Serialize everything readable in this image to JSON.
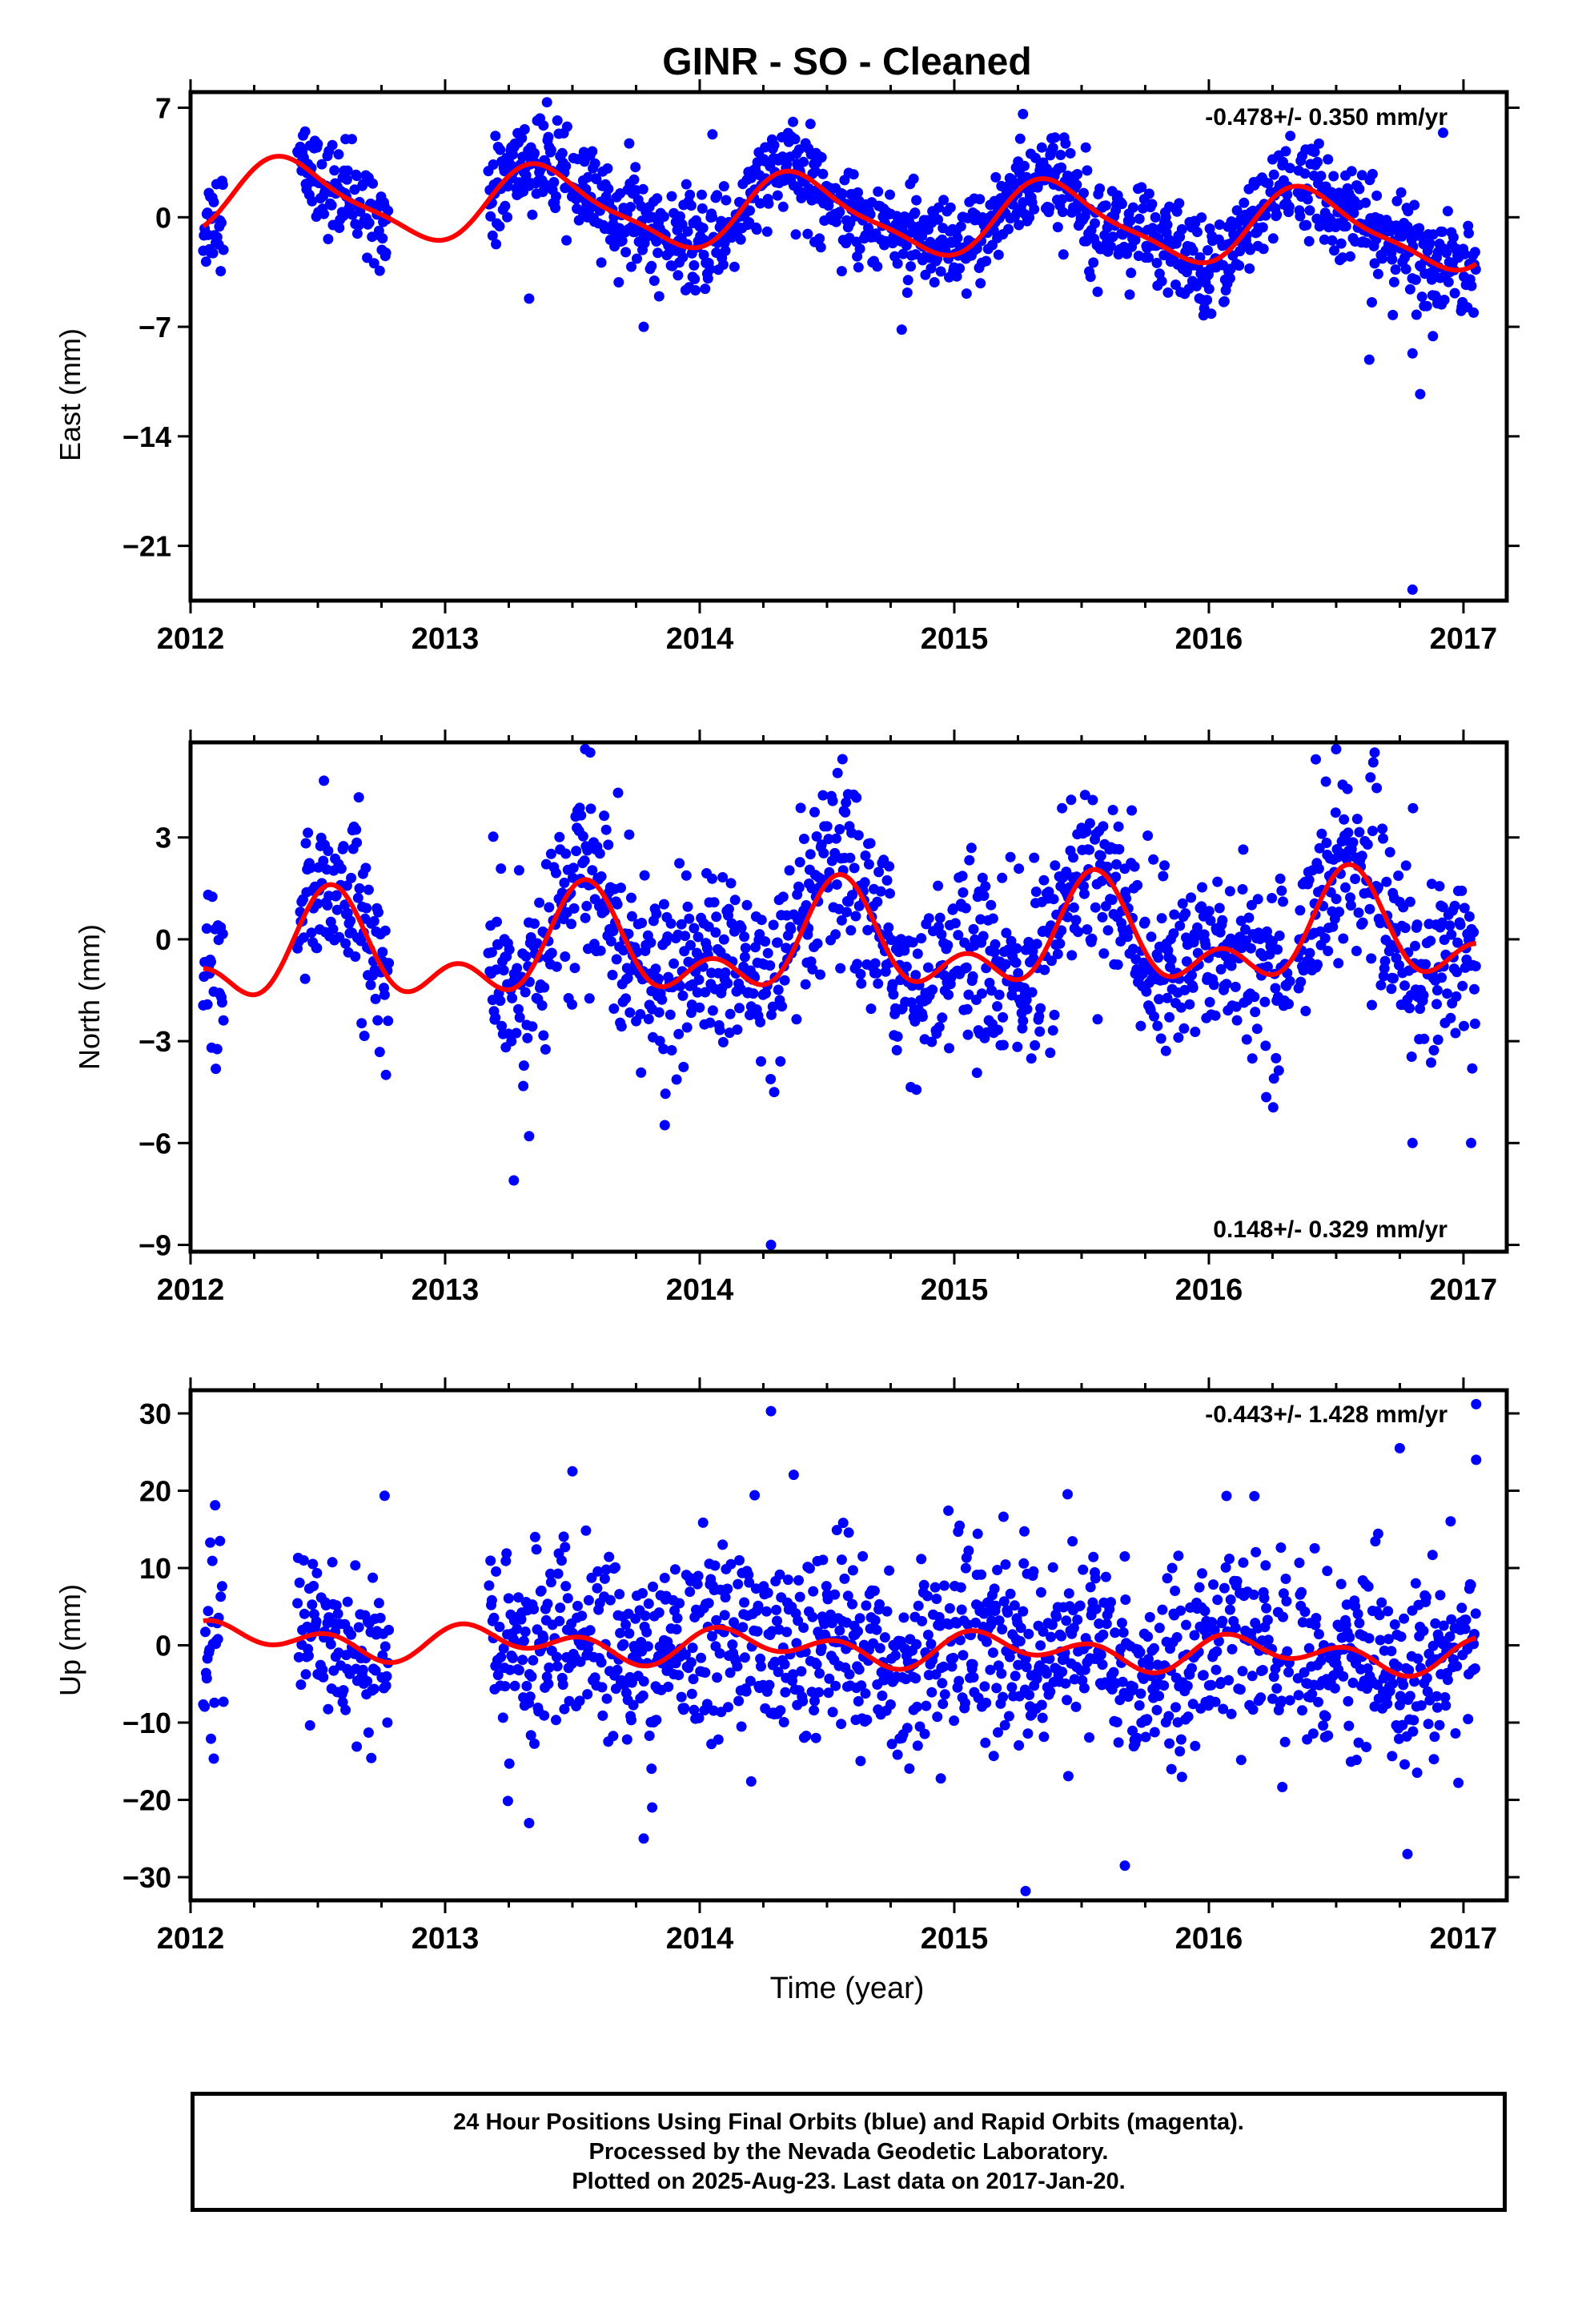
{
  "figure": {
    "title": "GINR  - SO - Cleaned",
    "xlabel": "Time (year)",
    "caption": [
      "24 Hour Positions Using Final Orbits (blue) and Rapid Orbits (magenta).",
      "Processed by the Nevada Geodetic Laboratory.",
      "Plotted on 2025-Aug-23. Last data on 2017-Jan-20."
    ],
    "colors": {
      "points": "#0000ff",
      "fit": "#ff0000",
      "frame": "#000000"
    }
  },
  "chart_data": [
    {
      "type": "scatter",
      "name": "east",
      "ylabel": "East (mm)",
      "rate_label": "-0.478+/- 0.350 mm/yr",
      "rate_position": "top-right",
      "xlim": [
        2012.0,
        2017.17
      ],
      "ylim": [
        -24.5,
        8.0
      ],
      "xticks": [
        2012,
        2013,
        2014,
        2015,
        2016,
        2017
      ],
      "xtick_labels": [
        "2012",
        "2013",
        "2014",
        "2015",
        "2016",
        "2017"
      ],
      "yticks": [
        7,
        0,
        -7,
        -14,
        -21
      ],
      "ytick_labels": [
        "7",
        "0",
        "−7",
        "−14",
        "−21"
      ],
      "segments": [
        [
          2012.05,
          2012.13
        ],
        [
          2012.42,
          2012.78
        ],
        [
          2013.17,
          2016.32
        ],
        [
          2016.35,
          2017.05
        ]
      ],
      "fit": {
        "offset": 0.2,
        "trend": -0.478,
        "annual_amp": 2.3,
        "annual_phase": 2012.4,
        "semi_amp": 0.6,
        "semi_phase": 2012.3
      },
      "noise_sd": 1.5,
      "outliers": [
        [
          2013.33,
          -5.2
        ],
        [
          2013.78,
          -7.0
        ],
        [
          2014.05,
          5.3
        ],
        [
          2015.27,
          6.6
        ],
        [
          2016.32,
          5.2
        ],
        [
          2016.63,
          -9.1
        ],
        [
          2016.8,
          -8.7
        ],
        [
          2016.83,
          -11.3
        ],
        [
          2016.92,
          5.4
        ],
        [
          2016.8,
          -23.8
        ],
        [
          2016.88,
          -7.6
        ]
      ]
    },
    {
      "type": "scatter",
      "name": "north",
      "ylabel": "North (mm)",
      "rate_label": "0.148+/- 0.329 mm/yr",
      "rate_position": "bottom-right",
      "xlim": [
        2012.0,
        2017.17
      ],
      "ylim": [
        -9.2,
        5.8
      ],
      "xticks": [
        2012,
        2013,
        2014,
        2015,
        2016,
        2017
      ],
      "xtick_labels": [
        "2012",
        "2013",
        "2014",
        "2015",
        "2016",
        "2017"
      ],
      "yticks": [
        3,
        0,
        -3,
        -6,
        -9
      ],
      "ytick_labels": [
        "3",
        "0",
        "−3",
        "−6",
        "−9"
      ],
      "segments": [
        [
          2012.05,
          2012.13
        ],
        [
          2012.42,
          2012.78
        ],
        [
          2013.17,
          2016.32
        ],
        [
          2016.35,
          2017.05
        ]
      ],
      "fit": {
        "offset": -0.2,
        "trend": 0.148,
        "annual_amp": 1.2,
        "annual_phase": 2012.55,
        "semi_amp": 0.9,
        "semi_phase": 2012.05
      },
      "noise_sd": 1.3,
      "outliers": [
        [
          2013.27,
          -7.1
        ],
        [
          2014.28,
          -9.0
        ],
        [
          2013.55,
          5.6
        ],
        [
          2016.42,
          5.3
        ],
        [
          2016.5,
          5.6
        ],
        [
          2016.8,
          -6.0
        ],
        [
          2017.03,
          -6.0
        ],
        [
          2013.33,
          -5.8
        ]
      ]
    },
    {
      "type": "scatter",
      "name": "up",
      "ylabel": "Up (mm)",
      "rate_label": "-0.443+/- 1.428 mm/yr",
      "rate_position": "top-right",
      "xlim": [
        2012.0,
        2017.17
      ],
      "ylim": [
        -33.0,
        33.0
      ],
      "xticks": [
        2012,
        2013,
        2014,
        2015,
        2016,
        2017
      ],
      "xtick_labels": [
        "2012",
        "2013",
        "2014",
        "2015",
        "2016",
        "2017"
      ],
      "yticks": [
        30,
        20,
        10,
        0,
        -10,
        -20,
        -30
      ],
      "ytick_labels": [
        "30",
        "20",
        "10",
        "0",
        "−10",
        "−20",
        "−30"
      ],
      "segments": [
        [
          2012.05,
          2012.13
        ],
        [
          2012.42,
          2012.78
        ],
        [
          2013.17,
          2016.32
        ],
        [
          2016.35,
          2017.05
        ]
      ],
      "fit": {
        "offset": -0.3,
        "trend": -0.443,
        "annual_amp": 1.3,
        "annual_phase": 2012.2,
        "semi_amp": 1.6,
        "semi_phase": 2012.05
      },
      "noise_sd": 6.0,
      "outliers": [
        [
          2014.28,
          30.3
        ],
        [
          2015.28,
          -31.8
        ],
        [
          2016.78,
          -27.0
        ],
        [
          2017.05,
          31.2
        ],
        [
          2013.78,
          -25.0
        ],
        [
          2015.67,
          -28.5
        ],
        [
          2013.5,
          22.5
        ],
        [
          2016.75,
          25.5
        ],
        [
          2017.05,
          24.0
        ],
        [
          2016.98,
          -17.8
        ],
        [
          2013.33,
          -23.0
        ]
      ]
    }
  ]
}
